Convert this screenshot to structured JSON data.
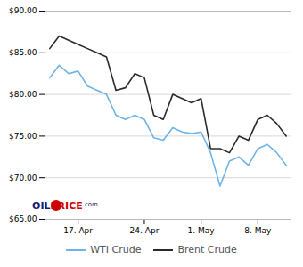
{
  "chart_data": {
    "type": "line",
    "x": [
      0,
      1,
      2,
      3,
      4,
      5,
      6,
      7,
      8,
      9,
      10,
      11,
      12,
      13,
      14,
      15,
      16,
      17,
      18,
      19,
      20,
      21,
      22,
      23,
      24,
      25
    ],
    "series": [
      {
        "name": "WTI Crude",
        "color": "#6eb4e8",
        "values": [
          82.0,
          83.5,
          82.5,
          82.8,
          81.0,
          80.5,
          80.0,
          77.5,
          77.0,
          77.5,
          77.0,
          74.8,
          74.5,
          76.0,
          75.5,
          75.3,
          75.5,
          73.0,
          69.0,
          72.0,
          72.5,
          71.5,
          73.5,
          74.0,
          73.0,
          71.5
        ]
      },
      {
        "name": "Brent Crude",
        "color": "#2a2a2a",
        "values": [
          85.5,
          87.0,
          86.5,
          86.0,
          85.5,
          85.0,
          84.5,
          80.5,
          80.8,
          82.5,
          82.0,
          77.5,
          77.0,
          80.0,
          79.5,
          79.0,
          79.5,
          73.5,
          73.5,
          73.0,
          75.0,
          74.5,
          77.0,
          77.5,
          76.5,
          75.0
        ]
      }
    ],
    "xlim": [
      -0.5,
      25.5
    ],
    "xticks": [
      {
        "value": 3,
        "label": "17. Apr"
      },
      {
        "value": 10,
        "label": "24. Apr"
      },
      {
        "value": 16,
        "label": "1. May"
      },
      {
        "value": 22,
        "label": "8. May"
      }
    ],
    "ylim": [
      65.0,
      90.0
    ],
    "yticks": [
      {
        "value": 65.0,
        "label": "$65.00"
      },
      {
        "value": 70.0,
        "label": "$70.00"
      },
      {
        "value": 75.0,
        "label": "$75.00"
      },
      {
        "value": 80.0,
        "label": "$80.00"
      },
      {
        "value": 85.0,
        "label": "$85.00"
      },
      {
        "value": 90.0,
        "label": "$90.00"
      }
    ],
    "grid": "y",
    "legend": "bottom",
    "annotations": [
      {
        "text": "OIL",
        "color": "#1a1a6e"
      },
      {
        "text": "PRICE",
        "color": "#cc0000"
      },
      {
        "text": ".com",
        "color": "#1a1a6e"
      }
    ]
  }
}
